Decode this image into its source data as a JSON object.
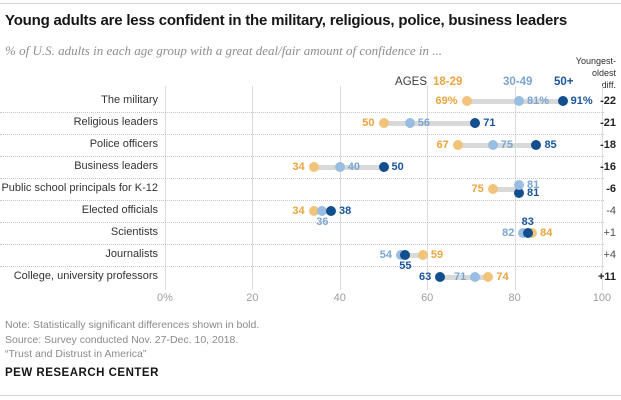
{
  "title": "Young adults are less confident in the military, religious, police, business leaders",
  "subtitle": "% of U.S. adults in each age group with a great deal/fair amount of confidence in ...",
  "legend": {
    "ages_label": "AGES",
    "groups": [
      {
        "key": "g18_29",
        "label": "18-29"
      },
      {
        "key": "g30_49",
        "label": "30-49"
      },
      {
        "key": "g50plus",
        "label": "50+"
      }
    ]
  },
  "diff_header": {
    "line1": "Youngest-",
    "line2": "oldest",
    "line3": "diff."
  },
  "colors": {
    "g18_29": {
      "text": "#E9A43E",
      "dot": "#F1C47C"
    },
    "g30_49": {
      "text": "#7AA5D1",
      "dot": "#99BEE2"
    },
    "g50plus": {
      "text": "#18559A",
      "dot": "#124F8C"
    },
    "bar": "#D9D9D9",
    "gridline": "#DCDCDC"
  },
  "chart_data": {
    "type": "scatter",
    "title": "Young adults are less confident in the military, religious, police, business leaders",
    "xlabel": "% confidence",
    "xlim": [
      0,
      100
    ],
    "grid": "vertical",
    "legend_position": "top",
    "ticks": [
      {
        "v": 0,
        "label": "0%"
      },
      {
        "v": 20,
        "label": "20"
      },
      {
        "v": 40,
        "label": "40"
      },
      {
        "v": 60,
        "label": "60"
      },
      {
        "v": 80,
        "label": "80"
      },
      {
        "v": 100,
        "label": "100"
      }
    ],
    "series": [
      "18-29",
      "30-49",
      "50+"
    ],
    "rows": [
      {
        "category": "The military",
        "suffix": "%",
        "diff": "-22",
        "diff_bold": true,
        "dots": [
          {
            "g": 0,
            "v": 69,
            "pos": "left"
          },
          {
            "g": 1,
            "v": 81,
            "pos": "right"
          },
          {
            "g": 2,
            "v": 91,
            "pos": "right"
          }
        ]
      },
      {
        "category": "Religious leaders",
        "diff": "-21",
        "diff_bold": true,
        "dots": [
          {
            "g": 0,
            "v": 50,
            "pos": "left"
          },
          {
            "g": 1,
            "v": 56,
            "pos": "right"
          },
          {
            "g": 2,
            "v": 71,
            "pos": "right"
          }
        ]
      },
      {
        "category": "Police officers",
        "diff": "-18",
        "diff_bold": true,
        "dots": [
          {
            "g": 0,
            "v": 67,
            "pos": "left"
          },
          {
            "g": 1,
            "v": 75,
            "pos": "right"
          },
          {
            "g": 2,
            "v": 85,
            "pos": "right"
          }
        ]
      },
      {
        "category": "Business leaders",
        "diff": "-16",
        "diff_bold": true,
        "dots": [
          {
            "g": 0,
            "v": 34,
            "pos": "left"
          },
          {
            "g": 1,
            "v": 40,
            "pos": "right"
          },
          {
            "g": 2,
            "v": 50,
            "pos": "right"
          }
        ]
      },
      {
        "category": "Public school principals for K-12",
        "diff": "-6",
        "diff_bold": true,
        "dots": [
          {
            "g": 0,
            "v": 75,
            "pos": "left"
          },
          {
            "g": 1,
            "v": 81,
            "pos": "right",
            "dy": -4,
            "z": 4
          },
          {
            "g": 2,
            "v": 81,
            "pos": "right",
            "dy": 4
          }
        ]
      },
      {
        "category": "Elected officials",
        "diff": "-4",
        "diff_bold": false,
        "dots": [
          {
            "g": 0,
            "v": 34,
            "pos": "left"
          },
          {
            "g": 1,
            "v": 36,
            "pos": "below"
          },
          {
            "g": 2,
            "v": 38,
            "pos": "right"
          }
        ]
      },
      {
        "category": "Scientists",
        "diff": "+1",
        "diff_bold": false,
        "dots": [
          {
            "g": 1,
            "v": 82,
            "pos": "left"
          },
          {
            "g": 2,
            "v": 83,
            "pos": "above"
          },
          {
            "g": 0,
            "v": 84,
            "pos": "right"
          }
        ]
      },
      {
        "category": "Journalists",
        "diff": "+4",
        "diff_bold": false,
        "dots": [
          {
            "g": 1,
            "v": 54,
            "pos": "left"
          },
          {
            "g": 2,
            "v": 55,
            "pos": "below"
          },
          {
            "g": 0,
            "v": 59,
            "pos": "right"
          }
        ]
      },
      {
        "category": "College, university professors",
        "diff": "+11",
        "diff_bold": true,
        "dots": [
          {
            "g": 2,
            "v": 63,
            "pos": "left"
          },
          {
            "g": 1,
            "v": 71,
            "pos": "left"
          },
          {
            "g": 0,
            "v": 74,
            "pos": "right"
          }
        ]
      }
    ]
  },
  "notes": [
    "Note: Statistically significant differences shown in bold.",
    "Source: Survey conducted Nov. 27-Dec. 10, 2018.",
    "“Trust and Distrust in America”"
  ],
  "footer": "PEW RESEARCH CENTER"
}
